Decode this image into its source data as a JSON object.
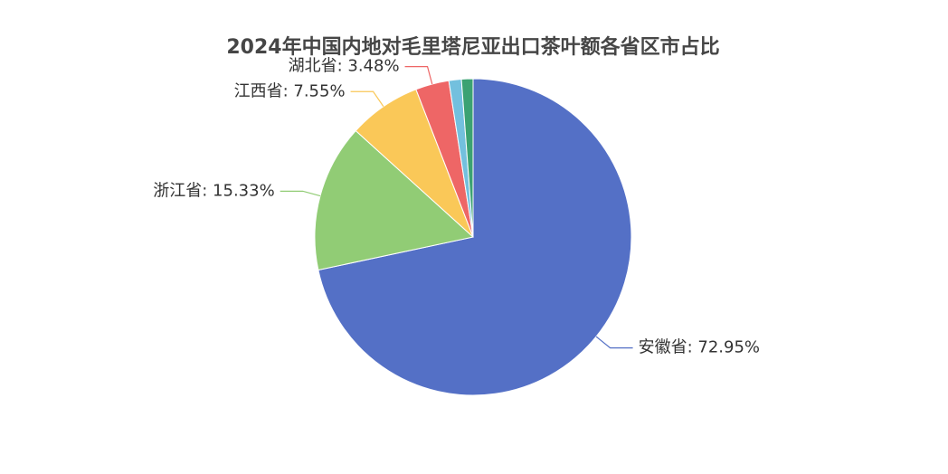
{
  "chart_data": {
    "type": "pie",
    "title": "2024年中国内地对毛里塔尼亚出口茶叶额各省区市占比",
    "values": [
      72.95,
      15.33,
      7.55,
      3.48,
      1.3,
      1.2
    ],
    "value_labels": [
      "安徽省: 72.95%",
      "浙江省: 15.33%",
      "江西省: 7.55%",
      "湖北省: 3.48%",
      null,
      null
    ],
    "colors": [
      "#5470c6",
      "#91cc75",
      "#fac858",
      "#ee6666",
      "#73c0de",
      "#3ba272"
    ]
  }
}
